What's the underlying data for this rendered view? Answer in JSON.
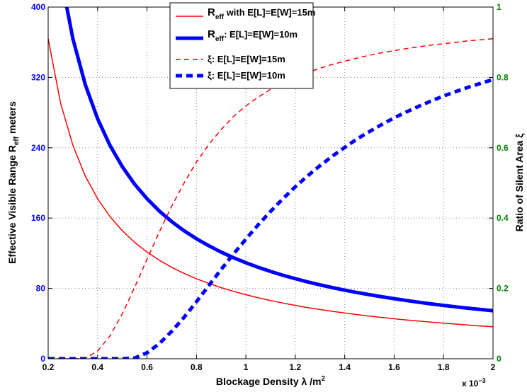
{
  "chart_data": {
    "type": "line",
    "xlabel": "Blockage Density λ /m²",
    "x_exponent_label": "x 10⁻³",
    "ylabel_left": "Effective Visible Range R_eff meters",
    "ylabel_right": "Ratio of Silent Area ξ",
    "xlim": [
      0.2,
      2.0
    ],
    "ylim_left": [
      0,
      400
    ],
    "ylim_right": [
      0,
      1
    ],
    "x_ticks": [
      "0.2",
      "0.4",
      "0.6",
      "0.8",
      "1",
      "1.2",
      "1.4",
      "1.6",
      "1.8",
      "2"
    ],
    "y_left_ticks": [
      "0",
      "80",
      "160",
      "240",
      "320",
      "400"
    ],
    "y_right_ticks": [
      "0",
      "0.2",
      "0.4",
      "0.6",
      "0.8",
      "1"
    ],
    "grid": true,
    "legend_position": "top-center",
    "x": [
      0.2,
      0.25,
      0.3,
      0.35,
      0.4,
      0.45,
      0.5,
      0.55,
      0.6,
      0.65,
      0.7,
      0.75,
      0.8,
      0.85,
      0.9,
      0.95,
      1.0,
      1.05,
      1.1,
      1.15,
      1.2,
      1.25,
      1.3,
      1.35,
      1.4,
      1.45,
      1.5,
      1.55,
      1.6,
      1.65,
      1.7,
      1.75,
      1.8,
      1.85,
      1.9,
      1.95,
      2.0
    ],
    "series": [
      {
        "name": "R_eff with E[L]=E[W]=15m",
        "axis": "left",
        "color": "#ff0000",
        "style": "solid",
        "width": "thin",
        "values": [
          364.0,
          291.2,
          242.7,
          208.0,
          182.0,
          161.8,
          145.6,
          132.4,
          121.3,
          112.0,
          104.0,
          97.1,
          91.0,
          85.6,
          80.9,
          76.6,
          72.8,
          69.3,
          66.2,
          63.3,
          60.7,
          58.2,
          56.0,
          53.9,
          52.0,
          50.2,
          48.5,
          47.0,
          45.5,
          44.1,
          42.8,
          41.6,
          40.4,
          39.4,
          38.3,
          37.3,
          36.4
        ]
      },
      {
        "name": "R_eff: E[L]=E[W]=10m",
        "axis": "left",
        "color": "#0000ff",
        "style": "solid",
        "width": "thick",
        "values": [
          546.0,
          436.8,
          364.0,
          312.0,
          273.0,
          242.7,
          218.4,
          198.5,
          182.0,
          168.0,
          156.0,
          145.6,
          136.5,
          128.5,
          121.3,
          114.9,
          109.2,
          104.0,
          99.3,
          95.0,
          91.0,
          87.4,
          84.0,
          80.9,
          78.0,
          75.3,
          72.8,
          70.5,
          68.3,
          66.2,
          64.2,
          62.4,
          60.7,
          59.0,
          57.5,
          56.0,
          54.6
        ]
      },
      {
        "name": "ξ: E[L]=E[W]=15m",
        "axis": "right",
        "color": "#ff0000",
        "style": "dashed",
        "width": "thin",
        "values": [
          0.0,
          0.0,
          0.0,
          0.001,
          0.022,
          0.065,
          0.128,
          0.203,
          0.283,
          0.361,
          0.434,
          0.5,
          0.559,
          0.609,
          0.652,
          0.689,
          0.719,
          0.744,
          0.766,
          0.784,
          0.8,
          0.814,
          0.826,
          0.837,
          0.846,
          0.855,
          0.863,
          0.87,
          0.876,
          0.882,
          0.887,
          0.892,
          0.896,
          0.9,
          0.904,
          0.907,
          0.91
        ]
      },
      {
        "name": "ξ: E[L]=E[W]=10m",
        "axis": "right",
        "color": "#0000ff",
        "style": "dashed",
        "width": "thick",
        "values": [
          0.0,
          0.0,
          0.0,
          0.0,
          0.0,
          0.0,
          0.0,
          0.002,
          0.017,
          0.043,
          0.078,
          0.118,
          0.162,
          0.208,
          0.254,
          0.298,
          0.34,
          0.381,
          0.419,
          0.455,
          0.489,
          0.52,
          0.549,
          0.576,
          0.601,
          0.625,
          0.646,
          0.666,
          0.685,
          0.702,
          0.718,
          0.733,
          0.747,
          0.76,
          0.772,
          0.783,
          0.794
        ]
      }
    ],
    "colors": {
      "left_axis": "#0000ff",
      "right_axis": "#008000",
      "grid": "#8c8c8c"
    }
  }
}
